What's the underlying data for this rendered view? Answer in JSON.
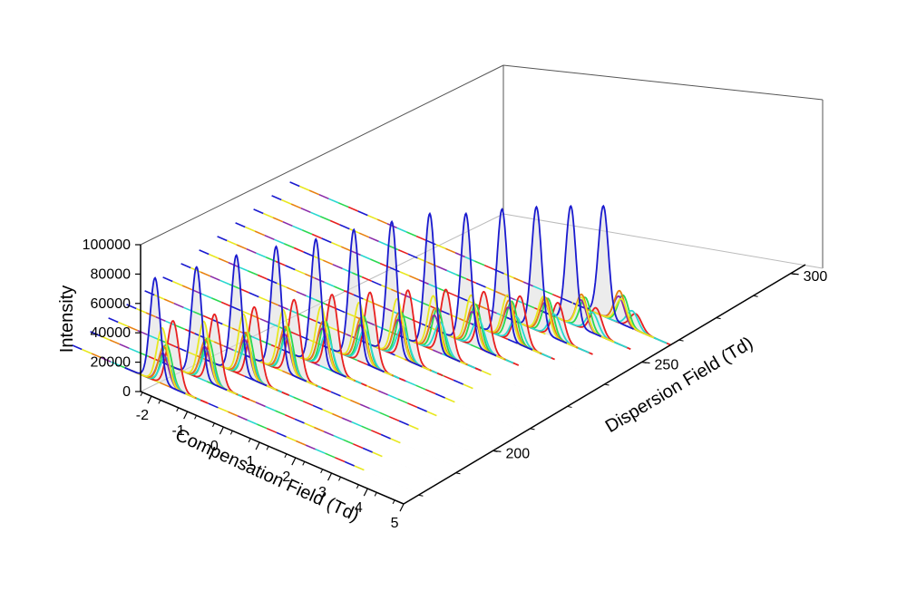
{
  "chart_data": {
    "type": "waterfall-3d-line",
    "z_axis": {
      "label": "Intensity",
      "range": [
        0,
        100000
      ],
      "ticks": [
        "0",
        "20000",
        "40000",
        "60000",
        "80000",
        "100000"
      ]
    },
    "x_axis": {
      "label": "Compensation Field (Td)",
      "range": [
        -2.3,
        5
      ],
      "ticks": [
        "-2",
        "-1",
        "0",
        "1",
        "2",
        "3",
        "4",
        "5"
      ]
    },
    "y_axis": {
      "label": "Dispersion Field (Td)",
      "range": [
        170,
        305
      ],
      "ticks": [
        "200",
        "250",
        "300"
      ]
    },
    "grid": false,
    "dispersion_slices": [
      178,
      188,
      198,
      208,
      218,
      228,
      238,
      248,
      258,
      268,
      278,
      288,
      298
    ],
    "series": [
      {
        "color": "#1a1acf",
        "peak_cf": [
          0.0,
          0.65,
          1.25,
          1.85,
          2.45,
          3.0,
          3.55,
          4.1,
          4.6,
          5.1,
          5.55,
          6.0,
          6.4
        ],
        "heights": [
          70000,
          75000,
          80000,
          83000,
          85000,
          88000,
          90000,
          92000,
          88000,
          87000,
          84000,
          80000,
          75000
        ],
        "width": 0.14
      },
      {
        "color": "#e8e820",
        "peak_cf": [
          0.2,
          0.85,
          1.45,
          2.05,
          2.6,
          3.15,
          3.7,
          4.2,
          4.75,
          5.25,
          5.75,
          6.3,
          6.9
        ],
        "heights": [
          38000,
          40000,
          42000,
          42000,
          41000,
          40000,
          39000,
          37000,
          34000,
          30000,
          25000,
          21000,
          17000
        ],
        "width": 0.15
      },
      {
        "color": "#e88010",
        "peak_cf": [
          0.25,
          0.9,
          1.5,
          2.1,
          2.65,
          3.2,
          3.75,
          4.25,
          4.8,
          5.3,
          5.8,
          6.3,
          6.85
        ],
        "heights": [
          26000,
          28000,
          30000,
          31000,
          31000,
          30000,
          30000,
          29000,
          28000,
          27000,
          25000,
          23000,
          22000
        ],
        "width": 0.15
      },
      {
        "color": "#8a2aa8",
        "peak_cf": [
          0.22,
          0.88,
          1.48,
          2.08,
          2.63,
          3.18,
          3.73,
          4.23,
          4.78,
          5.28,
          5.78,
          6.28,
          6.83
        ],
        "heights": [
          21000,
          23000,
          25000,
          26000,
          26000,
          25000,
          25000,
          24000,
          23000,
          22000,
          21000,
          19000,
          18000
        ],
        "width": 0.15
      },
      {
        "color": "#28d8d0",
        "peak_cf": [
          0.3,
          0.95,
          1.55,
          2.15,
          2.75,
          3.3,
          3.85,
          4.4,
          4.95,
          5.5,
          6.05,
          6.6,
          7.2
        ],
        "heights": [
          19000,
          21000,
          23000,
          24000,
          24000,
          23000,
          22000,
          21000,
          20000,
          18000,
          16000,
          14000,
          12000
        ],
        "width": 0.16
      },
      {
        "color": "#2ad850",
        "peak_cf": [
          0.32,
          0.97,
          1.57,
          2.17,
          2.72,
          3.27,
          3.82,
          4.32,
          4.87,
          5.37,
          5.87,
          6.4,
          6.95
        ],
        "heights": [
          28000,
          30000,
          31000,
          32000,
          32000,
          32000,
          31000,
          30000,
          29000,
          27000,
          25000,
          22000,
          20000
        ],
        "width": 0.15
      },
      {
        "color": "#e82020",
        "peak_cf": [
          0.5,
          1.15,
          1.75,
          2.35,
          2.9,
          3.45,
          4.0,
          4.55,
          5.1,
          5.6,
          6.15,
          6.7,
          7.3
        ],
        "heights": [
          46000,
          48000,
          50000,
          52000,
          52000,
          50000,
          48000,
          45000,
          40000,
          33000,
          25000,
          18000,
          11000
        ],
        "width": 0.16
      }
    ],
    "dashed_baseline_colors": [
      "#1a1acf",
      "#e8e820",
      "#e88010",
      "#8a2aa8",
      "#28d8d0",
      "#2ad850",
      "#e82020"
    ]
  }
}
